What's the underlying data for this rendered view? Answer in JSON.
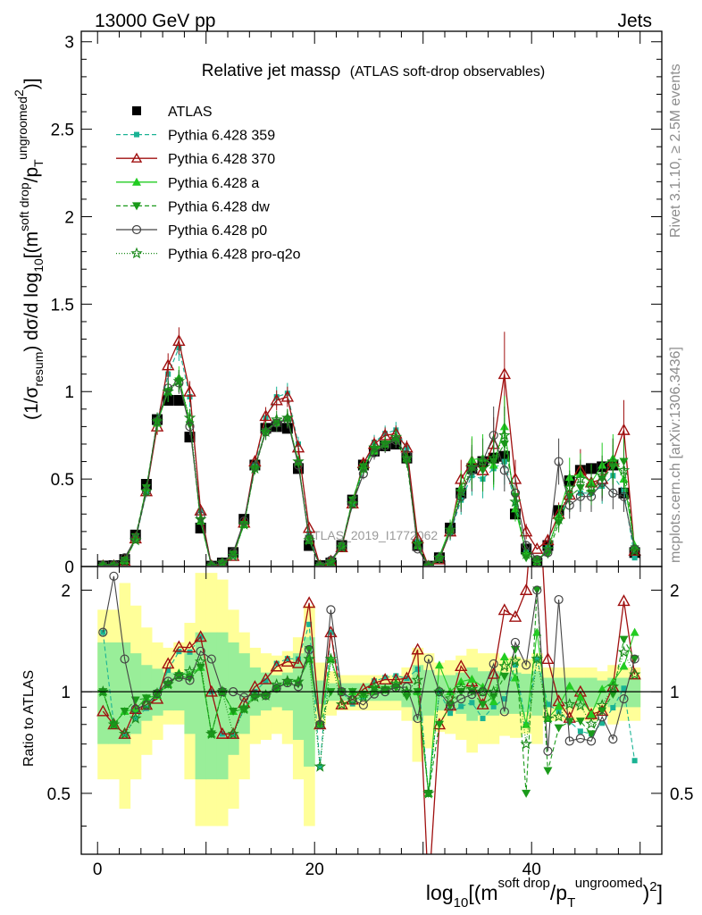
{
  "header": {
    "left": "13000 GeV pp",
    "right": "Jets"
  },
  "side": {
    "top": "Rivet 3.1.10, ≥ 2.5M events",
    "bottom": "mcplots.cern.ch [arXiv:1306.3436]"
  },
  "watermark": "ATLAS_2019_I1772062",
  "plot_title": {
    "main": "Relative jet massρ",
    "sub": "(ATLAS soft-drop observables)"
  },
  "y_label_main": {
    "p1": "(1/σ",
    "p1sub": "resum",
    "p2": ") dσ/d log",
    "p2sub": "10",
    "p3": "[(m",
    "p3sup": "soft drop",
    "p4": "/p",
    "p4sub": "T",
    "p4sup": "ungroomed",
    "p4sup2": "2",
    "p5": ")",
    "p6": "]"
  },
  "y_label_ratio": "Ratio to ATLAS",
  "x_label": {
    "p1": "log",
    "p1sub": "10",
    "p2": "[(m",
    "p2sup": "soft drop",
    "p3": "/p",
    "p3sub": "T",
    "p3sup": "ungroomed",
    "p4": ")",
    "p4sup": "2",
    "p5": "]"
  },
  "legend": [
    {
      "label": "ATLAS",
      "color": "#000000",
      "marker": "square-filled",
      "dash": ""
    },
    {
      "label": "Pythia 6.428 359",
      "color": "#1ab394",
      "marker": "square-small",
      "dash": "5,3"
    },
    {
      "label": "Pythia 6.428 370",
      "color": "#a01010",
      "marker": "triangle-open",
      "dash": ""
    },
    {
      "label": "Pythia 6.428 a",
      "color": "#22cc22",
      "marker": "triangle-filled",
      "dash": ""
    },
    {
      "label": "Pythia 6.428 dw",
      "color": "#1a9a1a",
      "marker": "triangle-down",
      "dash": "5,3"
    },
    {
      "label": "Pythia 6.428 p0",
      "color": "#444444",
      "marker": "circle-open",
      "dash": ""
    },
    {
      "label": "Pythia 6.428 pro-q2o",
      "color": "#1a8a1a",
      "marker": "star",
      "dash": "1,2"
    }
  ],
  "chart_data": {
    "type": "line",
    "x_range": [
      -1.5,
      52
    ],
    "main_y_range": [
      0,
      3.06
    ],
    "ratio_y_range": [
      0.33,
      2.35
    ],
    "main_y_ticks": [
      "0",
      "0.5",
      "1",
      "1.5",
      "2",
      "2.5",
      "3"
    ],
    "ratio_y_ticks": [
      "0.5",
      "1",
      "2"
    ],
    "x_ticks": [
      "0",
      "20",
      "40"
    ],
    "x": [
      0.5,
      1.5,
      2.5,
      3.5,
      4.5,
      5.5,
      6.5,
      7.5,
      8.5,
      9.5,
      10.5,
      11.5,
      12.5,
      13.5,
      14.5,
      15.5,
      16.5,
      17.5,
      18.5,
      19.5,
      20.5,
      21.5,
      22.5,
      23.5,
      24.5,
      25.5,
      26.5,
      27.5,
      28.5,
      29.5,
      30.5,
      31.5,
      32.5,
      33.5,
      34.5,
      35.5,
      36.5,
      37.5,
      38.5,
      39.5,
      40.5,
      41.5,
      42.5,
      43.5,
      44.5,
      45.5,
      46.5,
      47.5,
      48.5,
      49.5
    ],
    "series": [
      {
        "name": "ATLAS",
        "values": [
          0.003,
          0.005,
          0.04,
          0.18,
          0.47,
          0.84,
          0.95,
          0.95,
          0.74,
          0.22,
          0.002,
          0.02,
          0.08,
          0.27,
          0.58,
          0.79,
          0.8,
          0.79,
          0.56,
          0.12,
          0.005,
          0.02,
          0.12,
          0.38,
          0.58,
          0.66,
          0.69,
          0.7,
          0.62,
          0.12,
          0.002,
          0.05,
          0.22,
          0.42,
          0.56,
          0.6,
          0.62,
          0.63,
          0.3,
          0.1,
          0.02,
          0.12,
          0.32,
          0.49,
          0.55,
          0.56,
          0.57,
          0.58,
          0.42,
          0.08
        ]
      },
      {
        "name": "Pythia 6.428 359",
        "values": [
          0.006,
          0.004,
          0.03,
          0.15,
          0.42,
          0.83,
          1.1,
          1.25,
          0.97,
          0.32,
          0.004,
          0.015,
          0.06,
          0.24,
          0.58,
          0.85,
          0.97,
          0.99,
          0.7,
          0.19,
          0.003,
          0.03,
          0.12,
          0.35,
          0.56,
          0.71,
          0.76,
          0.78,
          0.68,
          0.14,
          0.002,
          0.05,
          0.19,
          0.38,
          0.52,
          0.5,
          0.56,
          0.6,
          0.36,
          0.08,
          0.025,
          0.11,
          0.28,
          0.4,
          0.42,
          0.42,
          0.46,
          0.52,
          0.43,
          0.05
        ]
      },
      {
        "name": "Pythia 6.428 370",
        "values": [
          0.0035,
          0.004,
          0.03,
          0.16,
          0.43,
          0.8,
          1.15,
          1.29,
          1.0,
          0.32,
          0.004,
          0.015,
          0.06,
          0.25,
          0.6,
          0.86,
          0.95,
          0.97,
          0.68,
          0.22,
          0.004,
          0.03,
          0.11,
          0.36,
          0.59,
          0.7,
          0.75,
          0.76,
          0.68,
          0.16,
          0.001,
          0.04,
          0.2,
          0.5,
          0.6,
          0.55,
          0.7,
          1.1,
          0.5,
          0.2,
          0.1,
          0.15,
          0.3,
          0.41,
          0.55,
          0.48,
          0.5,
          0.6,
          0.78,
          0.09
        ]
      },
      {
        "name": "Pythia 6.428 a",
        "values": [
          0.004,
          0.004,
          0.035,
          0.16,
          0.45,
          0.82,
          1.0,
          1.08,
          0.83,
          0.26,
          0.003,
          0.02,
          0.07,
          0.24,
          0.57,
          0.78,
          0.82,
          0.85,
          0.6,
          0.15,
          0.004,
          0.025,
          0.12,
          0.38,
          0.57,
          0.66,
          0.7,
          0.74,
          0.62,
          0.12,
          0.002,
          0.06,
          0.22,
          0.45,
          0.61,
          0.62,
          0.58,
          0.8,
          0.33,
          0.08,
          0.03,
          0.1,
          0.29,
          0.51,
          0.53,
          0.48,
          0.58,
          0.62,
          0.5,
          0.12
        ]
      },
      {
        "name": "Pythia 6.428 dw",
        "values": [
          0.004,
          0.004,
          0.035,
          0.17,
          0.45,
          0.83,
          1.0,
          1.06,
          0.81,
          0.26,
          0.003,
          0.02,
          0.07,
          0.24,
          0.56,
          0.77,
          0.82,
          0.84,
          0.59,
          0.16,
          0.004,
          0.02,
          0.12,
          0.38,
          0.57,
          0.67,
          0.7,
          0.72,
          0.6,
          0.12,
          0.002,
          0.04,
          0.2,
          0.42,
          0.56,
          0.55,
          0.6,
          0.7,
          0.4,
          0.05,
          0.04,
          0.07,
          0.25,
          0.4,
          0.45,
          0.42,
          0.5,
          0.57,
          0.6,
          0.1
        ]
      },
      {
        "name": "Pythia 6.428 p0",
        "values": [
          0.006,
          0.011,
          0.05,
          0.16,
          0.43,
          0.83,
          1.02,
          1.05,
          0.8,
          0.29,
          0.005,
          0.02,
          0.08,
          0.26,
          0.57,
          0.77,
          0.82,
          0.84,
          0.58,
          0.16,
          0.004,
          0.035,
          0.12,
          0.36,
          0.53,
          0.65,
          0.69,
          0.72,
          0.64,
          0.1,
          0.005,
          0.05,
          0.2,
          0.4,
          0.55,
          0.6,
          0.75,
          0.55,
          0.42,
          0.12,
          0.04,
          0.08,
          0.6,
          0.35,
          0.4,
          0.4,
          0.48,
          0.42,
          0.4,
          0.1
        ]
      },
      {
        "name": "Pythia 6.428 pro-q2o",
        "values": [
          0.004,
          0.004,
          0.03,
          0.15,
          0.43,
          0.83,
          1.0,
          1.06,
          0.85,
          0.27,
          0.003,
          0.02,
          0.06,
          0.24,
          0.56,
          0.77,
          0.84,
          0.85,
          0.6,
          0.15,
          0.003,
          0.025,
          0.11,
          0.36,
          0.56,
          0.68,
          0.7,
          0.74,
          0.62,
          0.13,
          0.002,
          0.05,
          0.21,
          0.43,
          0.57,
          0.6,
          0.62,
          0.75,
          0.37,
          0.07,
          0.025,
          0.1,
          0.27,
          0.45,
          0.5,
          0.45,
          0.52,
          0.6,
          0.55,
          0.09
        ]
      }
    ],
    "ratio": {
      "yellow_band": [
        0.55,
        0.55,
        0.45,
        0.55,
        0.65,
        0.72,
        0.8,
        0.8,
        0.55,
        0.4,
        0.4,
        0.4,
        0.45,
        0.55,
        0.7,
        0.72,
        0.75,
        0.7,
        0.55,
        0.4,
        0.8,
        0.85,
        0.88,
        0.88,
        0.88,
        0.88,
        0.88,
        0.88,
        0.82,
        0.62,
        0.68,
        0.76,
        0.75,
        0.72,
        0.66,
        0.7,
        0.7,
        0.74,
        0.73,
        0.75,
        0.7,
        0.82,
        0.82,
        0.82,
        0.82,
        0.82,
        0.85,
        0.8,
        0.82,
        0.82
      ],
      "yellow_band_hi": [
        1.75,
        1.75,
        2.1,
        1.8,
        1.55,
        1.4,
        1.35,
        1.4,
        1.6,
        2.25,
        2.25,
        2.15,
        1.75,
        1.5,
        1.35,
        1.3,
        1.28,
        1.32,
        1.45,
        1.8,
        1.22,
        1.15,
        1.12,
        1.12,
        1.12,
        1.12,
        1.12,
        1.12,
        1.18,
        1.35,
        1.3,
        1.22,
        1.24,
        1.28,
        1.34,
        1.3,
        1.3,
        1.26,
        1.27,
        1.25,
        1.3,
        1.18,
        1.18,
        1.18,
        1.18,
        1.18,
        1.15,
        1.2,
        1.18,
        1.18
      ],
      "green_band": [
        0.7,
        0.7,
        0.7,
        0.75,
        0.82,
        0.85,
        0.88,
        0.88,
        0.75,
        0.55,
        0.55,
        0.55,
        0.65,
        0.75,
        0.85,
        0.88,
        0.9,
        0.88,
        0.72,
        0.6,
        0.92,
        0.94,
        0.94,
        0.94,
        0.94,
        0.94,
        0.94,
        0.94,
        0.9,
        0.82,
        0.85,
        0.88,
        0.88,
        0.86,
        0.82,
        0.85,
        0.85,
        0.86,
        0.86,
        0.87,
        0.85,
        0.9,
        0.9,
        0.9,
        0.9,
        0.9,
        0.92,
        0.9,
        0.9,
        0.9
      ],
      "green_band_hi": [
        1.4,
        1.4,
        1.4,
        1.3,
        1.2,
        1.17,
        1.14,
        1.14,
        1.3,
        1.5,
        1.5,
        1.5,
        1.4,
        1.3,
        1.18,
        1.14,
        1.12,
        1.14,
        1.3,
        1.45,
        1.08,
        1.06,
        1.06,
        1.06,
        1.06,
        1.06,
        1.06,
        1.06,
        1.1,
        1.2,
        1.16,
        1.12,
        1.12,
        1.14,
        1.18,
        1.15,
        1.15,
        1.14,
        1.14,
        1.13,
        1.15,
        1.1,
        1.1,
        1.1,
        1.1,
        1.1,
        1.08,
        1.1,
        1.1,
        1.1
      ]
    }
  }
}
